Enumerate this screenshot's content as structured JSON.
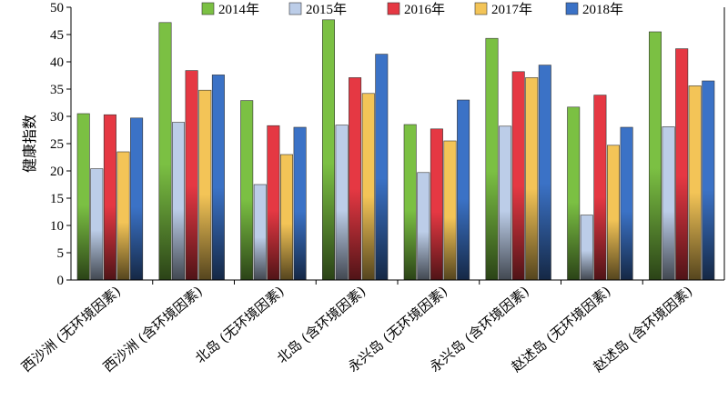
{
  "chart_data": {
    "type": "bar",
    "ylabel": "健康指数",
    "xlabel": "",
    "ylim": [
      0,
      50
    ],
    "yticks": [
      0,
      5,
      10,
      15,
      20,
      25,
      30,
      35,
      40,
      45,
      50
    ],
    "legend_position": "top",
    "grid": false,
    "categories": [
      "西沙洲 (无环境因素)",
      "西沙洲 (含环境因素)",
      "北岛 (无环境因素)",
      "北岛 (含环境因素)",
      "永兴岛 (无环境因素)",
      "永兴岛 (含环境因素)",
      "赵述岛 (无环境因素)",
      "赵述岛 (含环境因素)"
    ],
    "series": [
      {
        "name": "2014年",
        "color": "#7bc043",
        "values": [
          30.5,
          47.2,
          32.9,
          47.7,
          28.5,
          44.3,
          31.7,
          45.5
        ]
      },
      {
        "name": "2015年",
        "color": "#bccde8",
        "values": [
          20.4,
          28.9,
          17.5,
          28.4,
          19.7,
          28.2,
          11.9,
          28.1
        ]
      },
      {
        "name": "2016年",
        "color": "#e53843",
        "values": [
          30.3,
          38.4,
          28.3,
          37.1,
          27.7,
          38.2,
          33.9,
          42.4
        ]
      },
      {
        "name": "2017年",
        "color": "#f3c457",
        "values": [
          23.5,
          34.8,
          23.0,
          34.2,
          25.5,
          37.1,
          24.7,
          35.6
        ]
      },
      {
        "name": "2018年",
        "color": "#3b72c6",
        "values": [
          29.7,
          37.6,
          28.0,
          41.4,
          33.0,
          39.4,
          28.0,
          36.5
        ]
      }
    ]
  }
}
